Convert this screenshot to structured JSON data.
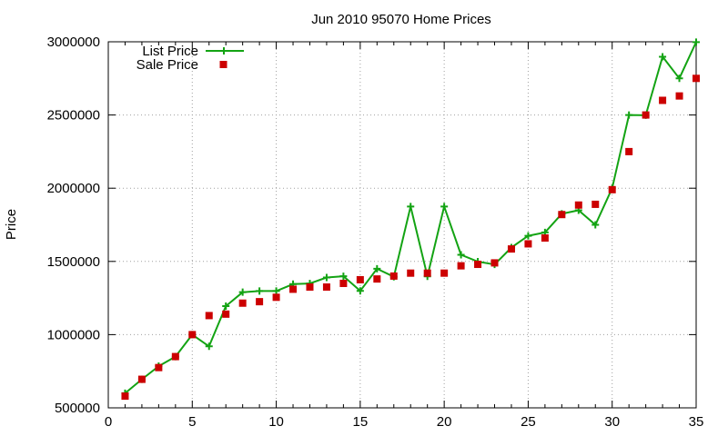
{
  "chart_data": {
    "type": "line",
    "title": "Jun 2010 95070 Home Prices",
    "xlabel": "",
    "ylabel": "Price",
    "xlim": [
      0,
      35
    ],
    "ylim": [
      500000,
      3000000
    ],
    "x_ticks": [
      0,
      5,
      10,
      15,
      20,
      25,
      30,
      35
    ],
    "y_ticks": [
      500000,
      1000000,
      1500000,
      2000000,
      2500000,
      3000000
    ],
    "grid": true,
    "legend_position": "top-left",
    "series": [
      {
        "name": "List Price",
        "style": "line+cross",
        "color": "#13a313",
        "x": [
          1,
          2,
          3,
          4,
          5,
          6,
          7,
          8,
          9,
          10,
          11,
          12,
          13,
          14,
          15,
          16,
          17,
          18,
          19,
          20,
          21,
          22,
          23,
          24,
          25,
          26,
          27,
          28,
          29,
          30,
          31,
          32,
          33,
          34,
          35
        ],
        "values": [
          600000,
          695000,
          785000,
          850000,
          1000000,
          920000,
          1195000,
          1290000,
          1298000,
          1298000,
          1345000,
          1349000,
          1390000,
          1399000,
          1299000,
          1450000,
          1395000,
          1875000,
          1398000,
          1875000,
          1545000,
          1499000,
          1479000,
          1595000,
          1675000,
          1698000,
          1825000,
          1849000,
          1750000,
          2000000,
          2500000,
          2498000,
          2898000,
          2750000,
          2998000
        ]
      },
      {
        "name": "Sale Price",
        "style": "square-marker",
        "color": "#cc0000",
        "x": [
          1,
          2,
          3,
          4,
          5,
          6,
          7,
          8,
          9,
          10,
          11,
          12,
          13,
          14,
          15,
          16,
          17,
          18,
          19,
          20,
          21,
          22,
          23,
          24,
          25,
          26,
          27,
          28,
          29,
          30,
          31,
          32,
          33,
          34,
          35
        ],
        "values": [
          580000,
          695000,
          775000,
          850000,
          1000000,
          1130000,
          1140000,
          1215000,
          1225000,
          1255000,
          1310000,
          1325000,
          1325000,
          1350000,
          1375000,
          1380000,
          1400000,
          1420000,
          1420000,
          1420000,
          1470000,
          1480000,
          1490000,
          1585000,
          1620000,
          1660000,
          1820000,
          1885000,
          1890000,
          1990000,
          2250000,
          2500000,
          2600000,
          2630000,
          2750000
        ]
      }
    ]
  }
}
